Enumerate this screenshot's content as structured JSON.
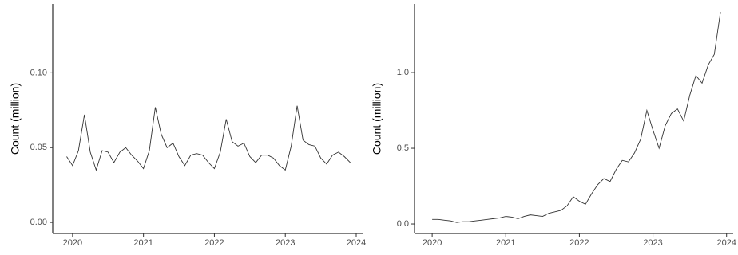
{
  "chart_data": [
    {
      "type": "line",
      "y_label": "Count (million)",
      "color": "#333333",
      "x": [
        2019.917,
        2020,
        2020.083,
        2020.167,
        2020.25,
        2020.333,
        2020.417,
        2020.5,
        2020.583,
        2020.667,
        2020.75,
        2020.833,
        2020.917,
        2021,
        2021.083,
        2021.167,
        2021.25,
        2021.333,
        2021.417,
        2021.5,
        2021.583,
        2021.667,
        2021.75,
        2021.833,
        2021.917,
        2022,
        2022.083,
        2022.167,
        2022.25,
        2022.333,
        2022.417,
        2022.5,
        2022.583,
        2022.667,
        2022.75,
        2022.833,
        2022.917,
        2023,
        2023.083,
        2023.167,
        2023.25,
        2023.333,
        2023.417,
        2023.5,
        2023.583,
        2023.667,
        2023.75,
        2023.833,
        2023.917
      ],
      "values": [
        0.044,
        0.038,
        0.048,
        0.072,
        0.047,
        0.035,
        0.048,
        0.047,
        0.04,
        0.047,
        0.05,
        0.045,
        0.041,
        0.036,
        0.048,
        0.077,
        0.059,
        0.05,
        0.053,
        0.044,
        0.038,
        0.045,
        0.046,
        0.045,
        0.04,
        0.036,
        0.047,
        0.069,
        0.054,
        0.051,
        0.053,
        0.044,
        0.04,
        0.045,
        0.045,
        0.043,
        0.038,
        0.035,
        0.051,
        0.078,
        0.055,
        0.052,
        0.051,
        0.043,
        0.039,
        0.045,
        0.047,
        0.044,
        0.04
      ],
      "xlim": [
        2019.72,
        2024.09
      ],
      "xticks": [
        2020,
        2021,
        2022,
        2023,
        2024
      ],
      "ylim": [
        -0.0074,
        0.146
      ],
      "yticks": [
        {
          "value": 0,
          "label": "0.00"
        },
        {
          "value": 0.05,
          "label": "0.05"
        },
        {
          "value": 0.1,
          "label": "0.10"
        }
      ]
    },
    {
      "type": "line",
      "y_label": "Count (million)",
      "color": "#333333",
      "x": [
        2020,
        2020.083,
        2020.167,
        2020.25,
        2020.333,
        2020.417,
        2020.5,
        2020.583,
        2020.667,
        2020.75,
        2020.833,
        2020.917,
        2021,
        2021.083,
        2021.167,
        2021.25,
        2021.333,
        2021.417,
        2021.5,
        2021.583,
        2021.667,
        2021.75,
        2021.833,
        2021.917,
        2022,
        2022.083,
        2022.167,
        2022.25,
        2022.333,
        2022.417,
        2022.5,
        2022.583,
        2022.667,
        2022.75,
        2022.833,
        2022.917,
        2023,
        2023.083,
        2023.167,
        2023.25,
        2023.333,
        2023.417,
        2023.5,
        2023.583,
        2023.667,
        2023.75,
        2023.833,
        2023.917
      ],
      "values": [
        0.03,
        0.03,
        0.025,
        0.02,
        0.01,
        0.015,
        0.015,
        0.02,
        0.025,
        0.03,
        0.035,
        0.04,
        0.05,
        0.045,
        0.035,
        0.05,
        0.06,
        0.055,
        0.05,
        0.07,
        0.08,
        0.09,
        0.12,
        0.18,
        0.15,
        0.13,
        0.2,
        0.26,
        0.3,
        0.28,
        0.36,
        0.42,
        0.41,
        0.47,
        0.56,
        0.75,
        0.62,
        0.5,
        0.65,
        0.73,
        0.76,
        0.68,
        0.85,
        0.98,
        0.93,
        1.05,
        1.12,
        1.4
      ],
      "xlim": [
        2019.76,
        2024.09
      ],
      "xticks": [
        2020,
        2021,
        2022,
        2023,
        2024
      ],
      "ylim": [
        -0.063,
        1.453
      ],
      "yticks": [
        {
          "value": 0,
          "label": "0.0"
        },
        {
          "value": 0.5,
          "label": "0.5"
        },
        {
          "value": 1,
          "label": "1.0"
        }
      ]
    }
  ]
}
